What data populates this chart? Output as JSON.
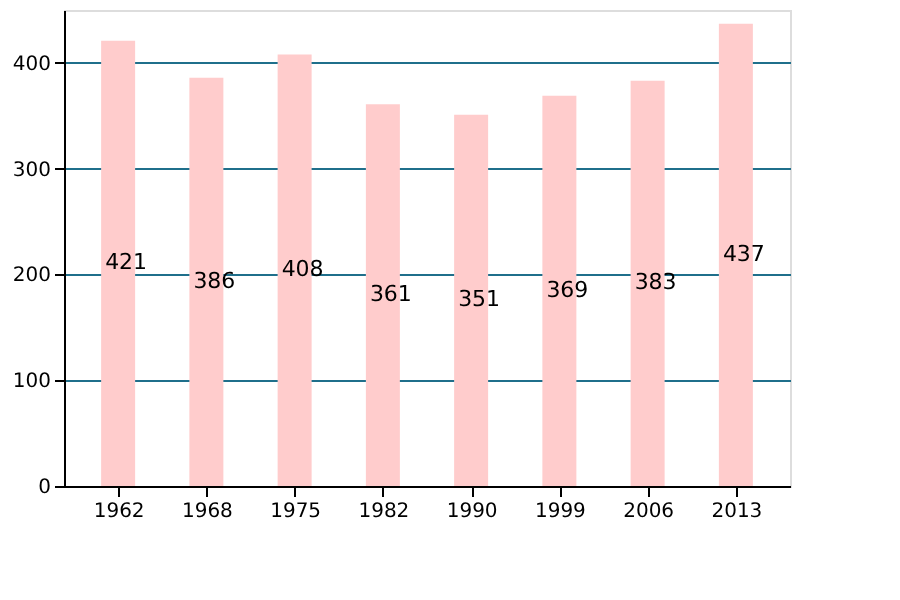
{
  "chart_data": {
    "type": "bar",
    "categories": [
      "1962",
      "1968",
      "1975",
      "1982",
      "1990",
      "1999",
      "2006",
      "2013"
    ],
    "values": [
      421,
      386,
      408,
      361,
      351,
      369,
      383,
      437
    ],
    "color": "#ffcccc",
    "data_labels": true,
    "grid": "y",
    "ylim": [
      0,
      450
    ],
    "yticks": [
      0,
      100,
      200,
      300,
      400
    ]
  }
}
